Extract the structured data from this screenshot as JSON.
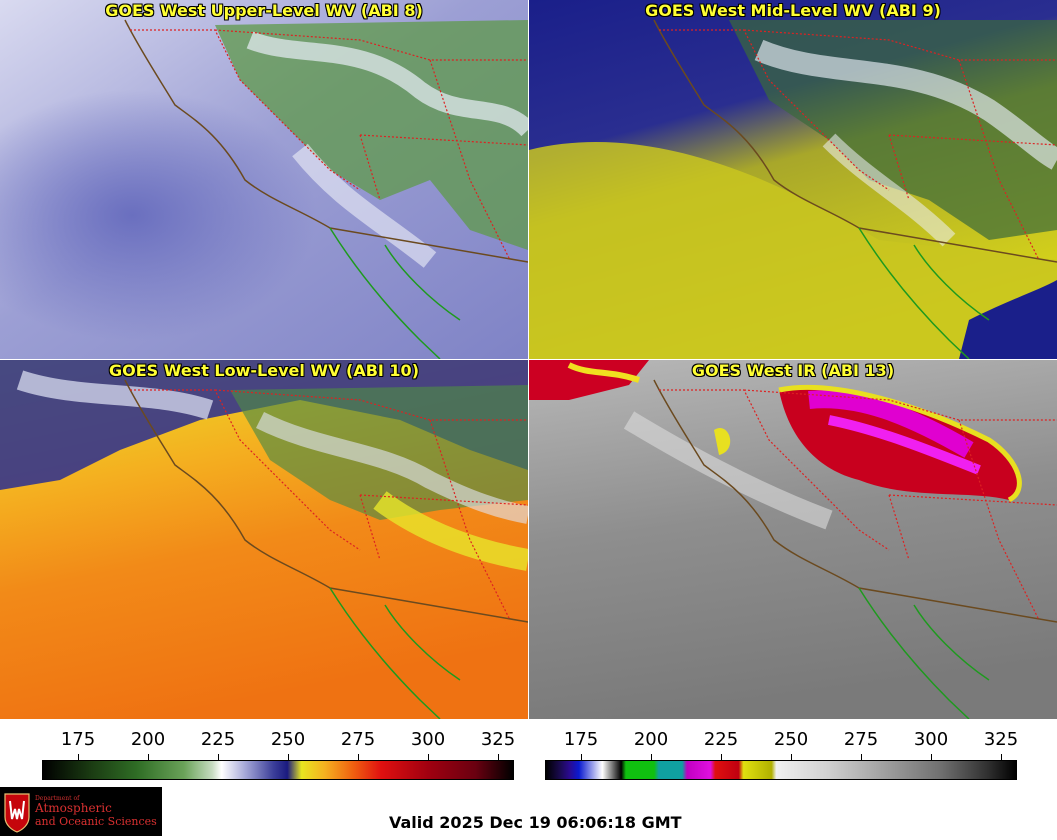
{
  "panels": [
    {
      "title": "GOES West Upper-Level WV (ABI 8)"
    },
    {
      "title": "GOES West Mid-Level WV (ABI 9)"
    },
    {
      "title": "GOES West Low-Level WV (ABI 10)"
    },
    {
      "title": "GOES West IR (ABI 13)"
    }
  ],
  "colorbars": [
    {
      "ticks": [
        "175",
        "200",
        "225",
        "250",
        "275",
        "300",
        "325"
      ]
    },
    {
      "ticks": [
        "175",
        "200",
        "225",
        "250",
        "275",
        "300",
        "325"
      ]
    }
  ],
  "logo": {
    "dept": "Department of",
    "line1": "Atmospheric",
    "line2": "and Oceanic Sciences"
  },
  "valid": "Valid 2025 Dec 19 06:06:18 GMT",
  "colors": {
    "title": "#ffff33",
    "state_borders": "#dd2222",
    "coast": "#6b4a1f",
    "baja_coast": "#1e9a1e"
  }
}
